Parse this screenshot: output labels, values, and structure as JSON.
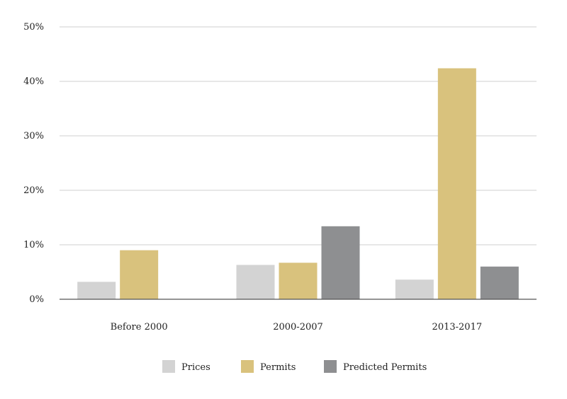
{
  "chart_data": {
    "type": "bar",
    "categories": [
      "Before 2000",
      "2000-2007",
      "2013-2017"
    ],
    "series": [
      {
        "name": "Prices",
        "color": "#d3d3d3",
        "values": [
          3.2,
          6.3,
          3.6
        ]
      },
      {
        "name": "Permits",
        "color": "#d9c27d",
        "values": [
          9.0,
          6.7,
          42.4
        ]
      },
      {
        "name": "Predicted Permits",
        "color": "#8e8f91",
        "values": [
          null,
          13.4,
          6.0
        ]
      }
    ],
    "ylim": [
      0,
      50
    ],
    "yticks": [
      0,
      10,
      20,
      30,
      40,
      50
    ],
    "ytick_labels": [
      "0%",
      "10%",
      "20%",
      "30%",
      "40%",
      "50%"
    ],
    "title": "",
    "xlabel": "",
    "ylabel": "",
    "grid": true,
    "legend_position": "bottom"
  }
}
